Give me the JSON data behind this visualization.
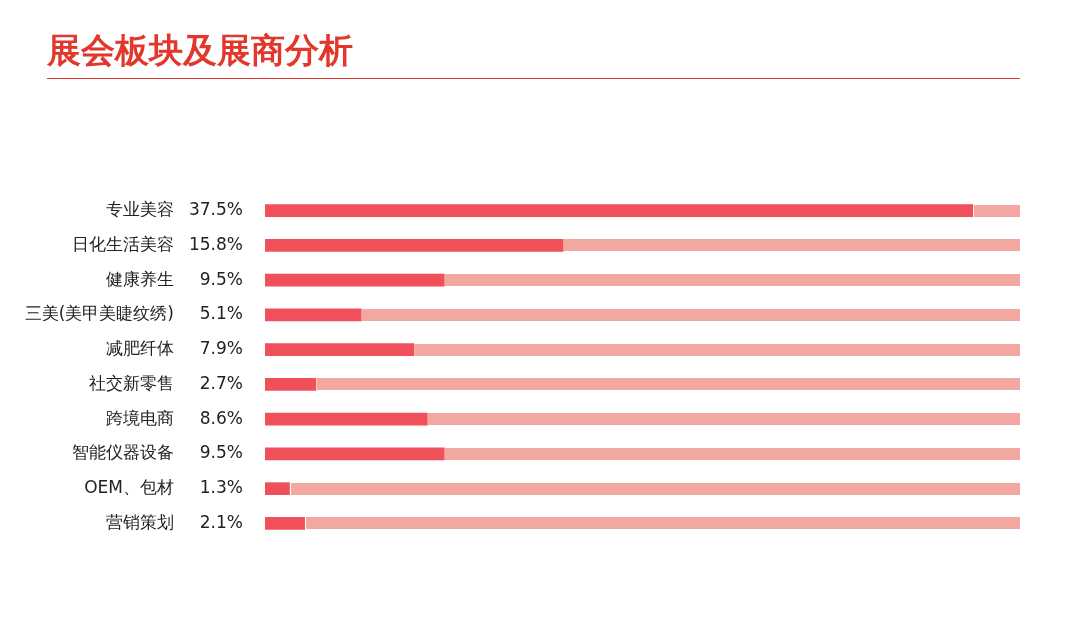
{
  "chart_data": {
    "type": "bar",
    "orientation": "horizontal",
    "title": "展会板块及展商分析",
    "categories": [
      "专业美容",
      "日化生活美容",
      "健康养生",
      "三美(美甲美睫纹绣)",
      "减肥纤体",
      "社交新零售",
      "跨境电商",
      "智能仪器设备",
      "OEM、包材",
      "营销策划"
    ],
    "values": [
      37.5,
      15.8,
      9.5,
      5.1,
      7.9,
      2.7,
      8.6,
      9.5,
      1.3,
      2.1
    ],
    "value_labels": [
      "37.5%",
      "15.8%",
      "9.5%",
      "5.1%",
      "7.9%",
      "2.7%",
      "8.6%",
      "9.5%",
      "1.3%",
      "2.1%"
    ],
    "color": "#f0505a",
    "grid": false,
    "legend": false,
    "tick_labels": "y"
  }
}
